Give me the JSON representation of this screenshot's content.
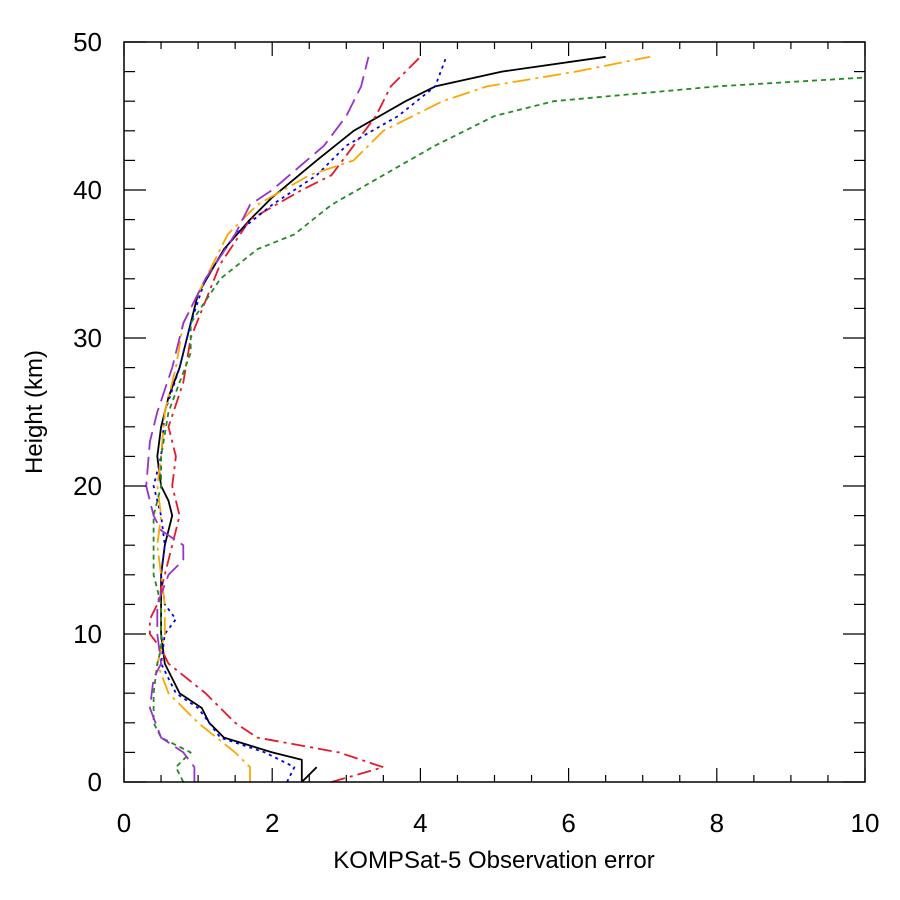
{
  "chart_data": {
    "type": "line",
    "title": "",
    "xlabel": "KOMPSat-5 Observation error",
    "ylabel": "Height (km)",
    "xlim": [
      0,
      10
    ],
    "ylim": [
      0,
      50
    ],
    "xticks": [
      0,
      2,
      4,
      6,
      8,
      10
    ],
    "yticks": [
      0,
      10,
      20,
      30,
      40,
      50
    ],
    "grid": false,
    "legend": "none",
    "series": [
      {
        "color": "#000000",
        "dash": "solid",
        "points": [
          [
            2.6,
            1
          ],
          [
            2.4,
            0
          ],
          [
            2.4,
            1.5
          ],
          [
            2.0,
            2
          ],
          [
            1.35,
            3
          ],
          [
            1.15,
            4
          ],
          [
            1.05,
            5
          ],
          [
            0.75,
            6
          ],
          [
            0.65,
            7
          ],
          [
            0.55,
            8
          ],
          [
            0.5,
            10
          ],
          [
            0.5,
            12
          ],
          [
            0.5,
            14
          ],
          [
            0.55,
            16
          ],
          [
            0.65,
            18
          ],
          [
            0.6,
            19
          ],
          [
            0.5,
            20
          ],
          [
            0.45,
            22
          ],
          [
            0.5,
            24
          ],
          [
            0.6,
            26
          ],
          [
            0.75,
            28
          ],
          [
            0.9,
            31
          ],
          [
            1.0,
            33
          ],
          [
            1.35,
            36
          ],
          [
            1.7,
            38
          ],
          [
            2.0,
            39.5
          ],
          [
            2.6,
            42
          ],
          [
            3.1,
            44
          ],
          [
            3.8,
            46
          ],
          [
            4.2,
            47
          ],
          [
            5.1,
            48
          ],
          [
            6.5,
            49
          ]
        ]
      },
      {
        "color": "#e6192b",
        "dash": "dashdot",
        "points": [
          [
            2.8,
            0
          ],
          [
            3.5,
            1
          ],
          [
            2.9,
            2
          ],
          [
            1.8,
            3
          ],
          [
            1.5,
            4
          ],
          [
            1.1,
            6
          ],
          [
            0.6,
            8
          ],
          [
            0.5,
            9
          ],
          [
            0.35,
            10
          ],
          [
            0.35,
            11
          ],
          [
            0.45,
            12
          ],
          [
            0.55,
            14
          ],
          [
            0.65,
            16
          ],
          [
            0.75,
            18
          ],
          [
            0.65,
            20
          ],
          [
            0.7,
            22
          ],
          [
            0.6,
            24
          ],
          [
            0.8,
            27
          ],
          [
            0.9,
            30
          ],
          [
            1.3,
            35
          ],
          [
            1.7,
            38
          ],
          [
            2.4,
            40
          ],
          [
            2.8,
            41
          ],
          [
            3.1,
            43
          ],
          [
            3.4,
            45
          ],
          [
            3.6,
            47
          ],
          [
            4.0,
            49
          ]
        ]
      },
      {
        "color": "#0000e6",
        "dash": "dot",
        "points": [
          [
            2.2,
            0
          ],
          [
            2.3,
            1
          ],
          [
            1.9,
            2
          ],
          [
            1.3,
            3
          ],
          [
            1.0,
            5
          ],
          [
            0.7,
            6
          ],
          [
            0.5,
            8
          ],
          [
            0.55,
            10
          ],
          [
            0.7,
            11
          ],
          [
            0.55,
            12
          ],
          [
            0.5,
            14
          ],
          [
            0.55,
            16
          ],
          [
            0.5,
            18
          ],
          [
            0.4,
            20
          ],
          [
            0.5,
            22
          ],
          [
            0.55,
            25
          ],
          [
            0.75,
            28
          ],
          [
            0.9,
            31
          ],
          [
            1.1,
            34
          ],
          [
            1.5,
            37
          ],
          [
            2.0,
            39
          ],
          [
            2.6,
            41
          ],
          [
            3.0,
            43
          ],
          [
            3.7,
            45
          ],
          [
            4.2,
            47
          ],
          [
            4.35,
            49
          ]
        ]
      },
      {
        "color": "#ffa500",
        "dash": "longdashdot",
        "points": [
          [
            1.7,
            0
          ],
          [
            1.7,
            1
          ],
          [
            1.5,
            2
          ],
          [
            1.0,
            4
          ],
          [
            0.6,
            6
          ],
          [
            0.45,
            8
          ],
          [
            0.55,
            10
          ],
          [
            0.55,
            12
          ],
          [
            0.5,
            14
          ],
          [
            0.45,
            16
          ],
          [
            0.5,
            18
          ],
          [
            0.45,
            20
          ],
          [
            0.5,
            22
          ],
          [
            0.55,
            25
          ],
          [
            0.7,
            28
          ],
          [
            0.8,
            31
          ],
          [
            1.1,
            34
          ],
          [
            1.4,
            37
          ],
          [
            1.8,
            39
          ],
          [
            2.5,
            41
          ],
          [
            3.1,
            42
          ],
          [
            3.5,
            44
          ],
          [
            4.3,
            46
          ],
          [
            4.9,
            47
          ],
          [
            6.1,
            48
          ],
          [
            7.1,
            49
          ]
        ]
      },
      {
        "color": "#228b22",
        "dash": "dash",
        "points": [
          [
            0.8,
            0
          ],
          [
            0.7,
            1
          ],
          [
            0.9,
            2
          ],
          [
            0.5,
            3
          ],
          [
            0.4,
            4
          ],
          [
            0.4,
            6
          ],
          [
            0.45,
            8
          ],
          [
            0.5,
            9
          ],
          [
            0.5,
            10
          ],
          [
            0.5,
            12
          ],
          [
            0.4,
            14
          ],
          [
            0.4,
            16
          ],
          [
            0.4,
            18
          ],
          [
            0.5,
            20
          ],
          [
            0.5,
            22
          ],
          [
            0.6,
            25
          ],
          [
            0.9,
            29
          ],
          [
            0.9,
            31
          ],
          [
            1.3,
            34
          ],
          [
            1.8,
            36
          ],
          [
            2.3,
            37
          ],
          [
            2.8,
            39
          ],
          [
            3.5,
            41
          ],
          [
            4.2,
            43
          ],
          [
            5.0,
            45
          ],
          [
            5.8,
            46
          ],
          [
            8.0,
            47
          ],
          [
            10.0,
            47.6
          ]
        ]
      },
      {
        "color": "#9932cc",
        "dash": "longdash",
        "points": [
          [
            0.95,
            0
          ],
          [
            0.95,
            1
          ],
          [
            0.8,
            2
          ],
          [
            0.5,
            3
          ],
          [
            0.35,
            5
          ],
          [
            0.4,
            7
          ],
          [
            0.5,
            8
          ],
          [
            0.45,
            10
          ],
          [
            0.45,
            12
          ],
          [
            0.6,
            14
          ],
          [
            0.8,
            15
          ],
          [
            0.8,
            16
          ],
          [
            0.5,
            17
          ],
          [
            0.4,
            18
          ],
          [
            0.3,
            20
          ],
          [
            0.35,
            23
          ],
          [
            0.45,
            25
          ],
          [
            0.65,
            28
          ],
          [
            0.8,
            31
          ],
          [
            1.1,
            34
          ],
          [
            1.5,
            37
          ],
          [
            1.7,
            39
          ],
          [
            2.0,
            40
          ],
          [
            2.7,
            43
          ],
          [
            3.0,
            45
          ],
          [
            3.2,
            47
          ],
          [
            3.3,
            49
          ]
        ]
      }
    ]
  }
}
